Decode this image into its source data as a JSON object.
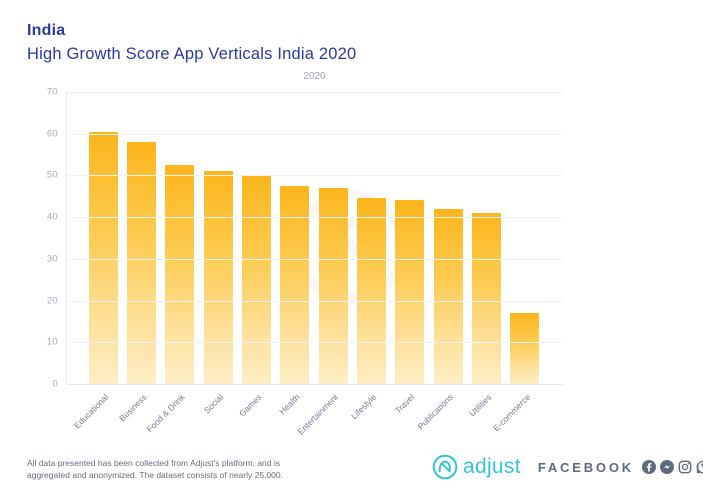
{
  "header": {
    "title": "India",
    "subtitle": "High Growth Score App Verticals India 2020"
  },
  "chart_data": {
    "type": "bar",
    "title": "High Growth Score App Verticals India 2020",
    "legend": [
      "2020"
    ],
    "legend_position": "top-center",
    "categories": [
      "Educational",
      "Business",
      "Food & Drink",
      "Social",
      "Games",
      "Health",
      "Entertainment",
      "Lifestyle",
      "Travel",
      "Publications",
      "Utilities",
      "E-commerce"
    ],
    "values": [
      60.5,
      58,
      52.5,
      51,
      50,
      47.5,
      47,
      44.5,
      44,
      42,
      41,
      17
    ],
    "xlabel": "",
    "ylabel": "",
    "ylim": [
      0,
      70
    ],
    "yticks": [
      0,
      10,
      20,
      30,
      40,
      50,
      60,
      70
    ],
    "grid": true,
    "bar_gradient": [
      "#fbb51c",
      "#fccb51",
      "#fde09a",
      "#fdeec6"
    ]
  },
  "colors": {
    "title_blue": "#2b3a9e",
    "bar_top": "#fbb51c",
    "bar_bottom": "#fdeec6",
    "axis_label": "#a6abba",
    "category_label": "#757b91",
    "gridline": "#f2f3f7",
    "footer_text": "#646e7c",
    "adjust_cyan": "#35c3da",
    "facebook_gray": "#5d6b7e"
  },
  "footer": {
    "disclaimer_line1": "All data presented has been collected from Adjust's platform, and is",
    "disclaimer_line2": "aggregated and anonymized. The dataset consists of nearly 25,000.",
    "adjust_logo_text": "adjust",
    "facebook_logo_text": "FACEBOOK",
    "social_icons": [
      "facebook-icon",
      "messenger-icon",
      "instagram-icon",
      "whatsapp-icon",
      "oculus-icon"
    ]
  }
}
